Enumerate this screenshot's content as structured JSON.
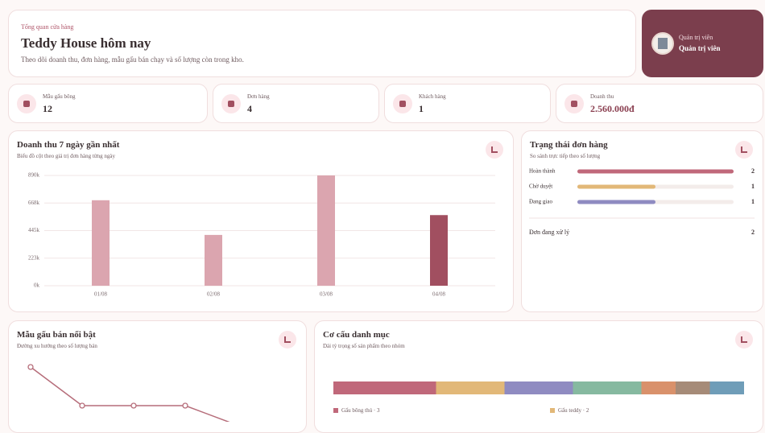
{
  "header": {
    "eyebrow": "Tổng quan cửa hàng",
    "title": "Teddy House hôm nay",
    "subtitle": "Theo dõi doanh thu, đơn hàng, mẫu gấu bán chạy và số lượng còn trong kho."
  },
  "admin": {
    "role": "Quản trị viên",
    "name": "Quản trị viên"
  },
  "stats": [
    {
      "label": "Mẫu gấu bông",
      "value": 12
    },
    {
      "label": "Đơn hàng",
      "value": 4
    },
    {
      "label": "Khách hàng",
      "value": 1
    },
    {
      "label": "Doanh thu",
      "value": "2.560.000đ"
    }
  ],
  "chart_data": [
    {
      "type": "bar",
      "title": "Doanh thu 7 ngày gần nhất",
      "subtitle": "Biểu đồ cột theo giá trị đơn hàng từng ngày",
      "categories": [
        "01/08",
        "02/08",
        "03/08",
        "04/08"
      ],
      "values": [
        690000,
        410000,
        890000,
        570000
      ],
      "colors": [
        "#dba5af",
        "#dba5af",
        "#dba5af",
        "#a14f60"
      ],
      "ylim": [
        0,
        890000
      ],
      "yticks": [
        {
          "value": 0,
          "label": "0k"
        },
        {
          "value": 222500,
          "label": "223k"
        },
        {
          "value": 445000,
          "label": "445k"
        },
        {
          "value": 667500,
          "label": "668k"
        },
        {
          "value": 890000,
          "label": "890k"
        }
      ],
      "grid": true
    },
    {
      "type": "progress",
      "title": "Trạng thái đơn hàng",
      "subtitle": "So sánh trực tiếp theo số lượng",
      "categories": [
        "Hoàn thành",
        "Chờ duyệt",
        "Đang giao"
      ],
      "values": [
        2,
        1,
        1
      ],
      "colors": [
        "#c0687a",
        "#e2b878",
        "#8f8bc1"
      ],
      "xlim": [
        0,
        2
      ],
      "summary_label": "Đơn đang xử lý",
      "summary_value": 2
    },
    {
      "type": "line",
      "title": "Mẫu gấu bán nổi bật",
      "subtitle": "Đường xu hướng theo số lượng bán",
      "values": [
        3,
        1,
        1,
        1,
        0
      ],
      "color": "#b66d7a",
      "ylim": [
        0,
        3
      ]
    },
    {
      "type": "stacked-bar",
      "title": "Cơ cấu danh mục",
      "subtitle": "Dải tỷ trọng số sản phẩm theo nhóm",
      "series": [
        {
          "name": "Gấu bông thú",
          "color": "#c0687a",
          "values": [
            3
          ]
        },
        {
          "name": "Gấu teddy",
          "color": "#e2b878",
          "values": [
            2
          ]
        },
        {
          "name": null,
          "color": "#8f8bc1",
          "values": [
            2
          ]
        },
        {
          "name": null,
          "color": "#86b9a0",
          "values": [
            2
          ]
        },
        {
          "name": null,
          "color": "#d9916b",
          "values": [
            1
          ]
        },
        {
          "name": null,
          "color": "#a68b78",
          "values": [
            1
          ]
        },
        {
          "name": null,
          "color": "#6f9db8",
          "values": [
            1
          ]
        }
      ]
    }
  ]
}
